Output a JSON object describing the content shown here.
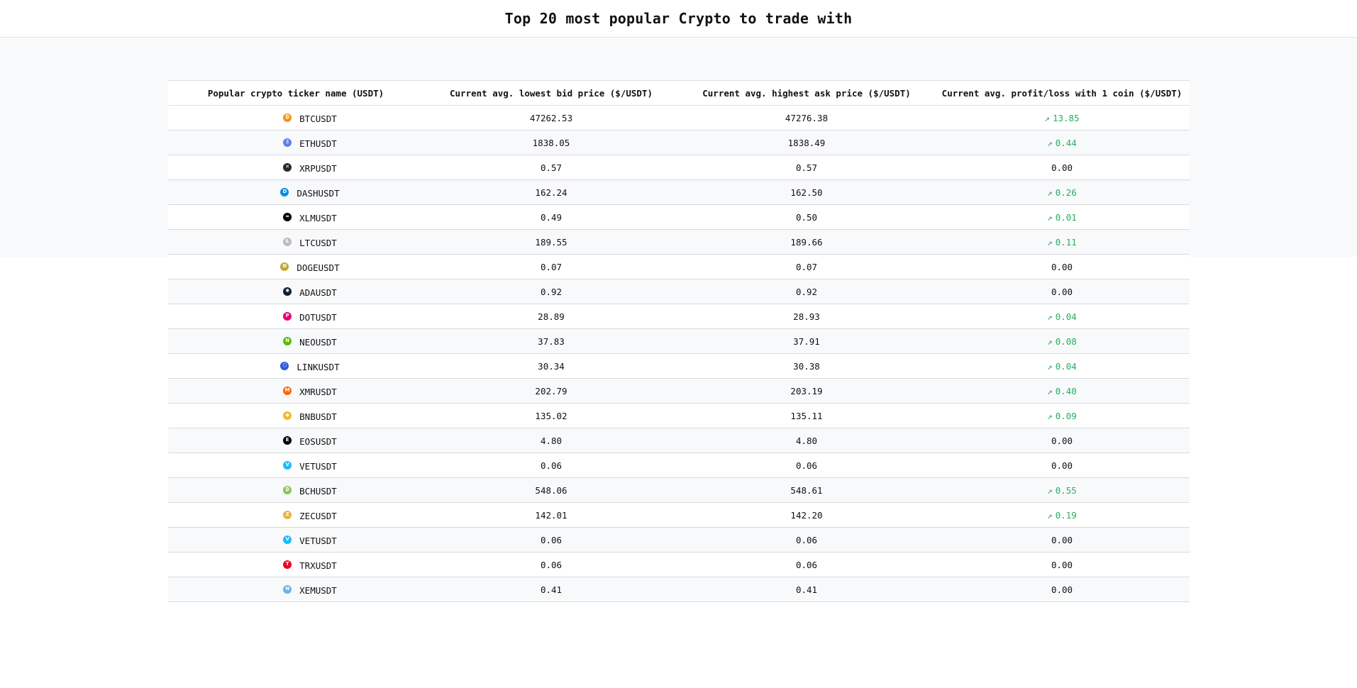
{
  "header": {
    "title": "Top 20 most popular Crypto to trade with"
  },
  "table": {
    "columns": [
      "Popular crypto ticker name (USDT)",
      "Current avg. lowest bid price ($/USDT)",
      "Current avg. highest ask price ($/USDT)",
      "Current avg. profit/loss with 1 coin ($/USDT)"
    ],
    "rows": [
      {
        "ticker": "BTCUSDT",
        "icon": "bitcoin-icon",
        "icon_glyph": "₿",
        "icon_color": "#f7931a",
        "bid": "47262.53",
        "ask": "47276.38",
        "profit": "13.85",
        "trend": "up"
      },
      {
        "ticker": "ETHUSDT",
        "icon": "ethereum-icon",
        "icon_glyph": "Ξ",
        "icon_color": "#627eea",
        "bid": "1838.05",
        "ask": "1838.49",
        "profit": "0.44",
        "trend": "up"
      },
      {
        "ticker": "XRPUSDT",
        "icon": "xrp-icon",
        "icon_glyph": "✕",
        "icon_color": "#23292f",
        "bid": "0.57",
        "ask": "0.57",
        "profit": "0.00",
        "trend": "none"
      },
      {
        "ticker": "DASHUSDT",
        "icon": "dash-icon",
        "icon_glyph": "D",
        "icon_color": "#008ce7",
        "bid": "162.24",
        "ask": "162.50",
        "profit": "0.26",
        "trend": "up"
      },
      {
        "ticker": "XLMUSDT",
        "icon": "stellar-icon",
        "icon_glyph": "≈",
        "icon_color": "#000000",
        "bid": "0.49",
        "ask": "0.50",
        "profit": "0.01",
        "trend": "up"
      },
      {
        "ticker": "LTCUSDT",
        "icon": "litecoin-icon",
        "icon_glyph": "Ł",
        "icon_color": "#bfbbbb",
        "bid": "189.55",
        "ask": "189.66",
        "profit": "0.11",
        "trend": "up"
      },
      {
        "ticker": "DOGEUSDT",
        "icon": "dogecoin-icon",
        "icon_glyph": "Ð",
        "icon_color": "#c2a633",
        "bid": "0.07",
        "ask": "0.07",
        "profit": "0.00",
        "trend": "none"
      },
      {
        "ticker": "ADAUSDT",
        "icon": "cardano-icon",
        "icon_glyph": "✺",
        "icon_color": "#0d1e30",
        "bid": "0.92",
        "ask": "0.92",
        "profit": "0.00",
        "trend": "none"
      },
      {
        "ticker": "DOTUSDT",
        "icon": "polkadot-icon",
        "icon_glyph": "P",
        "icon_color": "#e6007a",
        "bid": "28.89",
        "ask": "28.93",
        "profit": "0.04",
        "trend": "up"
      },
      {
        "ticker": "NEOUSDT",
        "icon": "neo-icon",
        "icon_glyph": "N",
        "icon_color": "#58bf00",
        "bid": "37.83",
        "ask": "37.91",
        "profit": "0.08",
        "trend": "up"
      },
      {
        "ticker": "LINKUSDT",
        "icon": "chainlink-icon",
        "icon_glyph": "⬡",
        "icon_color": "#2a5ada",
        "bid": "30.34",
        "ask": "30.38",
        "profit": "0.04",
        "trend": "up"
      },
      {
        "ticker": "XMRUSDT",
        "icon": "monero-icon",
        "icon_glyph": "M",
        "icon_color": "#ff6600",
        "bid": "202.79",
        "ask": "203.19",
        "profit": "0.40",
        "trend": "up"
      },
      {
        "ticker": "BNBUSDT",
        "icon": "bnb-icon",
        "icon_glyph": "◆",
        "icon_color": "#f3ba2f",
        "bid": "135.02",
        "ask": "135.11",
        "profit": "0.09",
        "trend": "up"
      },
      {
        "ticker": "EOSUSDT",
        "icon": "eos-icon",
        "icon_glyph": "E",
        "icon_color": "#000000",
        "bid": "4.80",
        "ask": "4.80",
        "profit": "0.00",
        "trend": "none"
      },
      {
        "ticker": "VETUSDT",
        "icon": "vechain-icon",
        "icon_glyph": "V",
        "icon_color": "#15bdff",
        "bid": "0.06",
        "ask": "0.06",
        "profit": "0.00",
        "trend": "none"
      },
      {
        "ticker": "BCHUSDT",
        "icon": "bitcoin-cash-icon",
        "icon_glyph": "₿",
        "icon_color": "#8dc351",
        "bid": "548.06",
        "ask": "548.61",
        "profit": "0.55",
        "trend": "up"
      },
      {
        "ticker": "ZECUSDT",
        "icon": "zcash-icon",
        "icon_glyph": "Z",
        "icon_color": "#ecb244",
        "bid": "142.01",
        "ask": "142.20",
        "profit": "0.19",
        "trend": "up"
      },
      {
        "ticker": "VETUSDT",
        "icon": "vechain-icon",
        "icon_glyph": "V",
        "icon_color": "#15bdff",
        "bid": "0.06",
        "ask": "0.06",
        "profit": "0.00",
        "trend": "none"
      },
      {
        "ticker": "TRXUSDT",
        "icon": "tron-icon",
        "icon_glyph": "T",
        "icon_color": "#ef0027",
        "bid": "0.06",
        "ask": "0.06",
        "profit": "0.00",
        "trend": "none"
      },
      {
        "ticker": "XEMUSDT",
        "icon": "nem-icon",
        "icon_glyph": "N",
        "icon_color": "#67b2e8",
        "bid": "0.41",
        "ask": "0.41",
        "profit": "0.00",
        "trend": "none"
      }
    ],
    "trend_up_glyph": "↗",
    "colors": {
      "profit_positive": "#27ae60",
      "profit_zero": "#111111"
    }
  }
}
